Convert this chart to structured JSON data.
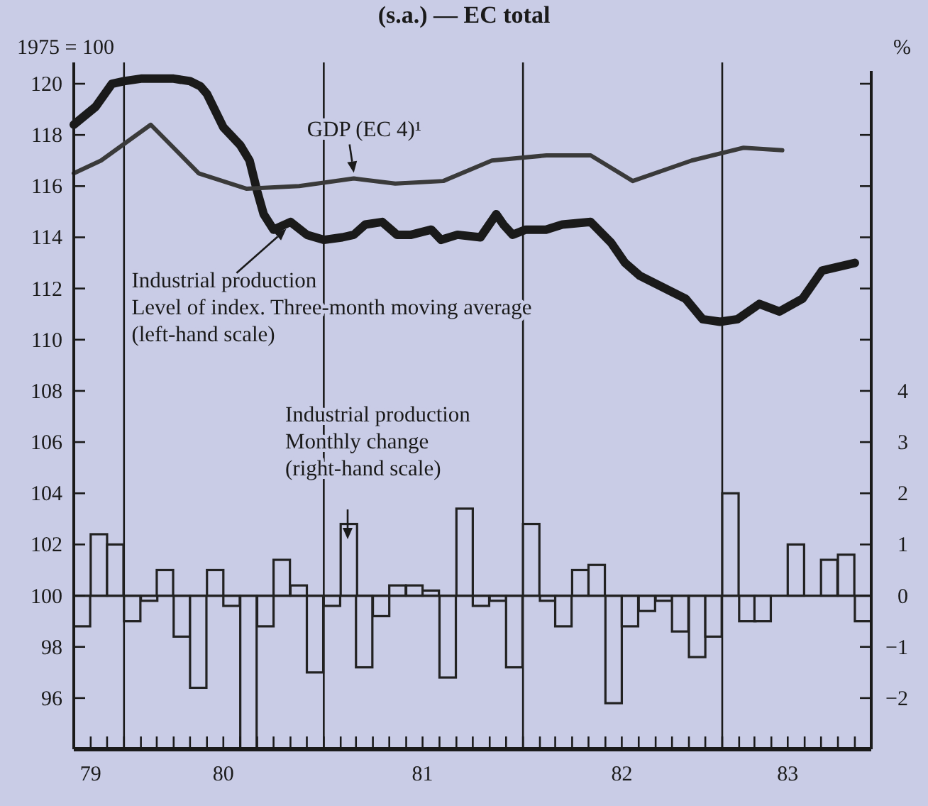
{
  "chart_data": {
    "type": "line",
    "title": "(s.a.) — EC total",
    "ylabel": "1975 = 100",
    "y2label": "%",
    "xlim": [
      "1979-10",
      "1983-10"
    ],
    "xticks": [
      {
        "value": "1979-11",
        "label": "79"
      },
      {
        "value": "1979-12",
        "label": null
      },
      {
        "value": "1980-01",
        "label": null
      },
      {
        "value": "1980-02",
        "label": null
      },
      {
        "value": "1980-03",
        "label": null
      },
      {
        "value": "1980-04",
        "label": null
      },
      {
        "value": "1980-05",
        "label": null
      },
      {
        "value": "1980-06",
        "label": null
      },
      {
        "value": "1980-07",
        "label": "80"
      },
      {
        "value": "1980-08",
        "label": null
      },
      {
        "value": "1980-09",
        "label": null
      },
      {
        "value": "1980-10",
        "label": null
      },
      {
        "value": "1980-11",
        "label": null
      },
      {
        "value": "1980-12",
        "label": null
      },
      {
        "value": "1981-01",
        "label": null
      },
      {
        "value": "1981-02",
        "label": null
      },
      {
        "value": "1981-03",
        "label": null
      },
      {
        "value": "1981-04",
        "label": null
      },
      {
        "value": "1981-05",
        "label": null
      },
      {
        "value": "1981-06",
        "label": null
      },
      {
        "value": "1981-07",
        "label": "81"
      },
      {
        "value": "1981-08",
        "label": null
      },
      {
        "value": "1981-09",
        "label": null
      },
      {
        "value": "1981-10",
        "label": null
      },
      {
        "value": "1981-11",
        "label": null
      },
      {
        "value": "1981-12",
        "label": null
      },
      {
        "value": "1982-01",
        "label": null
      },
      {
        "value": "1982-02",
        "label": null
      },
      {
        "value": "1982-03",
        "label": null
      },
      {
        "value": "1982-04",
        "label": null
      },
      {
        "value": "1982-05",
        "label": null
      },
      {
        "value": "1982-06",
        "label": null
      },
      {
        "value": "1982-07",
        "label": "82"
      },
      {
        "value": "1982-08",
        "label": null
      },
      {
        "value": "1982-09",
        "label": null
      },
      {
        "value": "1982-10",
        "label": null
      },
      {
        "value": "1982-11",
        "label": null
      },
      {
        "value": "1982-12",
        "label": null
      },
      {
        "value": "1983-01",
        "label": null
      },
      {
        "value": "1983-02",
        "label": null
      },
      {
        "value": "1983-03",
        "label": null
      },
      {
        "value": "1983-04",
        "label": null
      },
      {
        "value": "1983-05",
        "label": "83"
      },
      {
        "value": "1983-06",
        "label": null
      },
      {
        "value": "1983-07",
        "label": null
      },
      {
        "value": "1983-08",
        "label": null
      },
      {
        "value": "1983-09",
        "label": null
      }
    ],
    "ylim": [
      94,
      120.5
    ],
    "yticks": [
      96,
      98,
      100,
      102,
      104,
      106,
      108,
      110,
      112,
      114,
      116,
      118,
      120
    ],
    "y2lim": [
      -3,
      10.25
    ],
    "y2ticks": [
      {
        "value": -2,
        "label": "−2"
      },
      {
        "value": -1,
        "label": "−1"
      },
      0,
      1,
      2,
      3,
      4,
      {
        "value": 5,
        "label": null
      },
      {
        "value": 6,
        "label": null
      },
      {
        "value": 7,
        "label": null
      },
      {
        "value": 8,
        "label": null
      },
      {
        "value": 9,
        "label": null
      },
      {
        "value": 10,
        "label": null
      }
    ],
    "ref_lines": [
      {
        "axis": "x",
        "value": "1980-01",
        "color": "#1a1a1a"
      },
      {
        "axis": "x",
        "value": "1981-01",
        "color": "#1a1a1a"
      },
      {
        "axis": "x",
        "value": "1982-01",
        "color": "#1a1a1a"
      },
      {
        "axis": "x",
        "value": "1983-01",
        "color": "#1a1a1a"
      }
    ],
    "series": [
      {
        "type": "bar",
        "axis": "y2",
        "color": "#222222",
        "x": [
          "1979-10-16",
          "1979-11-16",
          "1979-12-16",
          "1980-01-16",
          "1980-02-16",
          "1980-03-16",
          "1980-04-16",
          "1980-05-16",
          "1980-06-16",
          "1980-07-16",
          "1980-08-16",
          "1980-09-16",
          "1980-10-16",
          "1980-11-16",
          "1980-12-16",
          "1981-01-16",
          "1981-02-16",
          "1981-03-16",
          "1981-04-16",
          "1981-05-16",
          "1981-06-16",
          "1981-07-16",
          "1981-08-16",
          "1981-09-16",
          "1981-10-16",
          "1981-11-16",
          "1981-12-16",
          "1982-01-16",
          "1982-02-16",
          "1982-03-16",
          "1982-04-16",
          "1982-05-16",
          "1982-06-16",
          "1982-07-16",
          "1982-08-16",
          "1982-09-16",
          "1982-10-16",
          "1982-11-16",
          "1982-12-16",
          "1983-01-16",
          "1983-02-16",
          "1983-03-16",
          "1983-04-16",
          "1983-05-16",
          "1983-06-16",
          "1983-07-16",
          "1983-08-16",
          "1983-09-16"
        ],
        "values": [
          -0.6,
          1.2,
          1.0,
          -0.5,
          -0.1,
          0.5,
          -0.8,
          -1.8,
          0.5,
          -0.2,
          -3,
          -0.6,
          0.7,
          0.2,
          -1.5,
          -0.2,
          1.4,
          -1.4,
          -0.4,
          0.2,
          0.2,
          0.1,
          -1.6,
          1.7,
          -0.2,
          -0.1,
          -1.4,
          1.4,
          -0.1,
          -0.6,
          0.5,
          0.6,
          -2.1,
          -0.6,
          -0.3,
          -0.1,
          -0.7,
          -1.2,
          -0.8,
          2.0,
          -0.5,
          -0.5,
          0,
          1.0,
          0,
          0.7,
          0.8,
          -0.5
        ]
      },
      {
        "color": "#1a1a1a",
        "x": [
          "1979-10-01",
          "1979-11-10",
          "1979-12-10",
          "1980-01-01",
          "1980-02-01",
          "1980-03-01",
          "1980-04-01",
          "1980-05-01",
          "1980-05-20",
          "1980-06-01",
          "1980-07-01",
          "1980-08-01",
          "1980-08-18",
          "1980-09-01",
          "1980-09-13",
          "1980-10-01",
          "1980-11-01",
          "1980-12-01",
          "1981-01-01",
          "1981-02-04",
          "1981-02-25",
          "1981-03-18",
          "1981-04-18",
          "1981-05-15",
          "1981-06-10",
          "1981-07-17",
          "1981-08-04",
          "1981-09-03",
          "1981-10-15",
          "1981-11-13",
          "1981-11-26",
          "1981-12-13",
          "1982-01-06",
          "1982-02-12",
          "1982-03-14",
          "1982-05-05",
          "1982-06-11",
          "1982-07-07",
          "1982-08-03",
          "1982-10-26",
          "1982-11-26",
          "1982-12-28",
          "1983-01-29",
          "1983-03-10",
          "1983-04-16",
          "1983-05-28",
          "1983-07-03",
          "1983-09-01"
        ],
        "values": [
          118.4,
          119.1,
          120.0,
          120.1,
          120.2,
          120.2,
          120.2,
          120.1,
          119.9,
          119.6,
          118.3,
          117.6,
          117.0,
          115.8,
          114.9,
          114.3,
          114.6,
          114.1,
          113.9,
          114.0,
          114.1,
          114.5,
          114.6,
          114.1,
          114.1,
          114.3,
          113.9,
          114.1,
          114.0,
          114.9,
          114.5,
          114.1,
          114.3,
          114.3,
          114.5,
          114.6,
          113.8,
          113.0,
          112.5,
          111.6,
          110.8,
          110.7,
          110.8,
          111.4,
          111.1,
          111.6,
          112.7,
          113.0
        ]
      },
      {
        "color": "#3a3a3a",
        "x": [
          "1979-10-01",
          "1979-11-20",
          "1980-02-19",
          "1980-05-17",
          "1980-08-12",
          "1980-11-17",
          "1981-02-25",
          "1981-05-12",
          "1981-08-08",
          "1981-11-05",
          "1982-02-13",
          "1982-05-05",
          "1982-07-21",
          "1982-11-06",
          "1983-02-09",
          "1983-04-21"
        ],
        "values": [
          116.5,
          117.0,
          118.4,
          116.5,
          115.9,
          116.0,
          116.3,
          116.1,
          116.2,
          117.0,
          117.2,
          117.2,
          116.2,
          117.0,
          117.5,
          117.4
        ]
      }
    ],
    "annotations": [
      {
        "text": "GDP (EC 4)¹",
        "x": "1981-02-25",
        "y": 116.3
      },
      {
        "text": "Industrial production\nLevel of index. Three-month moving average\n(left-hand scale)",
        "x": "1980-11-01",
        "y": 114.6
      },
      "Industrial production\nMonthly change\n(right-hand scale)"
    ]
  }
}
